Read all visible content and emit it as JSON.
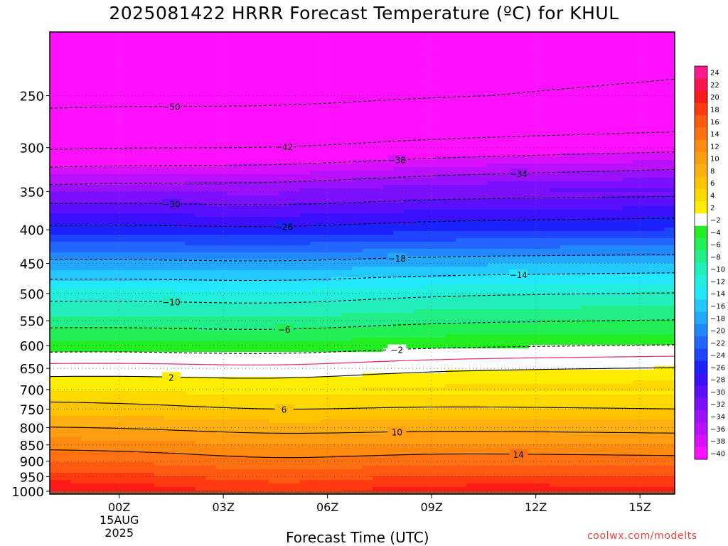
{
  "chart_data": {
    "type": "heatmap",
    "title": "2025081422 HRRR Forecast Temperature (ºC) for KHUL",
    "xlabel": "Forecast Time (UTC)",
    "ylabel": "",
    "credit": "coolwx.com/modelts",
    "y_axis": {
      "scale": "log-pressure",
      "inverted": true,
      "ylim_hpa": [
        1010,
        200
      ],
      "ticks": [
        250,
        300,
        350,
        400,
        450,
        500,
        550,
        600,
        650,
        700,
        750,
        800,
        850,
        900,
        950,
        1000
      ]
    },
    "x_axis": {
      "ticks": [
        "00Z",
        "03Z",
        "06Z",
        "09Z",
        "12Z",
        "15Z"
      ],
      "first_tick_sublabels": [
        "15AUG",
        "2025"
      ],
      "xlim_hours": [
        -2,
        16
      ]
    },
    "colorbar": {
      "labels": [
        "24",
        "22",
        "20",
        "18",
        "16",
        "14",
        "12",
        "10",
        "8",
        "6",
        "4",
        "2",
        "−2",
        "−4",
        "−6",
        "−8",
        "−10",
        "−12",
        "−14",
        "−16",
        "−18",
        "−20",
        "−22",
        "−24",
        "−26",
        "−28",
        "−30",
        "−32",
        "−34",
        "−36",
        "−38",
        "−40"
      ],
      "colors": [
        "#ff1a8c",
        "#ff1450",
        "#ff1a1a",
        "#ff3a10",
        "#ff5a10",
        "#ff7010",
        "#ff8a10",
        "#ff9e10",
        "#ffb010",
        "#ffc400",
        "#ffd800",
        "#ffee00",
        "#ffffff",
        "#22ee22",
        "#22ee55",
        "#22ee88",
        "#22eebb",
        "#22eedd",
        "#22e8ff",
        "#22c8ff",
        "#22a8ff",
        "#2288ff",
        "#2266ff",
        "#1e44ff",
        "#1a22ff",
        "#3a10ff",
        "#5a10ff",
        "#7a10ff",
        "#9a10ff",
        "#ba10ff",
        "#d810ff",
        "#ff10ff"
      ]
    },
    "profile_start": {
      "pressure_hpa": [
        1000,
        950,
        900,
        850,
        800,
        750,
        700,
        650,
        600,
        550,
        500,
        450,
        400,
        350,
        300,
        250,
        200
      ],
      "temperature_c": [
        22,
        19,
        16,
        13,
        10,
        7,
        4,
        1,
        -3,
        -7,
        -11,
        -17,
        -25,
        -32,
        -42,
        -52,
        -56
      ]
    },
    "contours": [
      {
        "value": -50,
        "label": "−50"
      },
      {
        "value": -42,
        "label": "−42"
      },
      {
        "value": -38,
        "label": "−38"
      },
      {
        "value": -34,
        "label": "−34"
      },
      {
        "value": -30,
        "label": "−30"
      },
      {
        "value": -26,
        "label": "−26"
      },
      {
        "value": -18,
        "label": "−18"
      },
      {
        "value": -14,
        "label": "−14"
      },
      {
        "value": -10,
        "label": "−10"
      },
      {
        "value": -6,
        "label": "−6"
      },
      {
        "value": -2,
        "label": "−2"
      },
      {
        "value": 0,
        "label": ""
      },
      {
        "value": 2,
        "label": "2"
      },
      {
        "value": 6,
        "label": "6"
      },
      {
        "value": 10,
        "label": "10"
      },
      {
        "value": 14,
        "label": "14"
      }
    ],
    "ground": {
      "below_hpa": 1000,
      "color": "#a0522d"
    },
    "grid": true
  }
}
